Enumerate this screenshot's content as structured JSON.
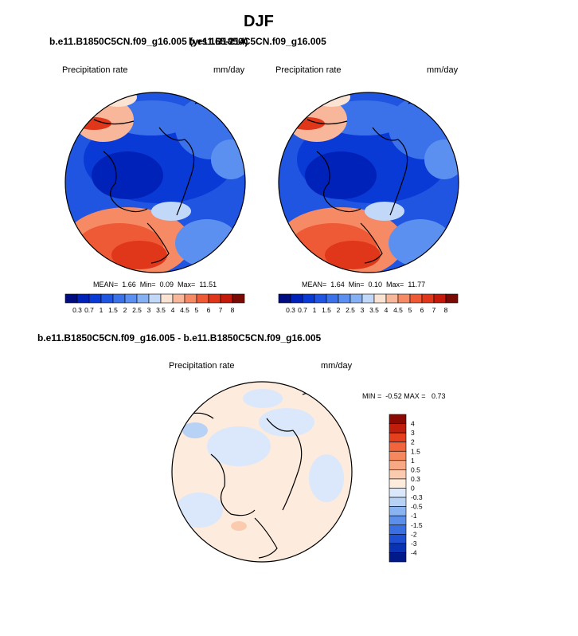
{
  "page_title": "DJF",
  "chart_data": [
    {
      "type": "heatmap",
      "title": "b.e11.B1850C5CN.f09_g16.005 (yrs 165-214)",
      "left_label": "Precipitation rate",
      "units": "mm/day",
      "stats": {
        "text": "MEAN=  1.66  Min=  0.09  Max=  11.51",
        "mean": 1.66,
        "min": 0.09,
        "max": 11.51
      },
      "colorbar": {
        "orientation": "horizontal",
        "ticks": [
          "0.3",
          "0.7",
          "1",
          "1.5",
          "2",
          "2.5",
          "3",
          "3.5",
          "4",
          "4.5",
          "5",
          "6",
          "7",
          "8"
        ],
        "tick_values": [
          0.3,
          0.7,
          1,
          1.5,
          2,
          2.5,
          3,
          3.5,
          4,
          4.5,
          5,
          6,
          7,
          8
        ],
        "colors": [
          "#000d80",
          "#0022b8",
          "#0a3ad6",
          "#1f55e0",
          "#3b72ea",
          "#5c90f0",
          "#86b0f4",
          "#c2d8f8",
          "#fbe3d4",
          "#f8b79a",
          "#f58a64",
          "#ee5a36",
          "#e0361a",
          "#c41a0b",
          "#7a0a04"
        ]
      }
    },
    {
      "type": "heatmap",
      "title": "b.e11.B1850C5CN.f09_g16.005",
      "left_label": "Precipitation rate",
      "units": "mm/day",
      "stats": {
        "text": "MEAN=  1.64  Min=  0.10  Max=  11.77",
        "mean": 1.64,
        "min": 0.1,
        "max": 11.77
      },
      "colorbar": {
        "orientation": "horizontal",
        "ticks": [
          "0.3",
          "0.7",
          "1",
          "1.5",
          "2",
          "2.5",
          "3",
          "3.5",
          "4",
          "4.5",
          "5",
          "6",
          "7",
          "8"
        ],
        "tick_values": [
          0.3,
          0.7,
          1,
          1.5,
          2,
          2.5,
          3,
          3.5,
          4,
          4.5,
          5,
          6,
          7,
          8
        ],
        "colors": [
          "#000d80",
          "#0022b8",
          "#0a3ad6",
          "#1f55e0",
          "#3b72ea",
          "#5c90f0",
          "#86b0f4",
          "#c2d8f8",
          "#fbe3d4",
          "#f8b79a",
          "#f58a64",
          "#ee5a36",
          "#e0361a",
          "#c41a0b",
          "#7a0a04"
        ]
      }
    },
    {
      "type": "heatmap",
      "title": "b.e11.B1850C5CN.f09_g16.005 - b.e11.B1850C5CN.f09_g16.005",
      "left_label": "Precipitation rate",
      "units": "mm/day",
      "stats": {
        "text": "MIN =  -0.52 MAX =   0.73",
        "min": -0.52,
        "max": 0.73
      },
      "colorbar": {
        "orientation": "vertical",
        "ticks": [
          "4",
          "3",
          "2",
          "1.5",
          "1",
          "0.5",
          "0.3",
          "0",
          "-0.3",
          "-0.5",
          "-1",
          "-1.5",
          "-2",
          "-3",
          "-4"
        ],
        "tick_values": [
          4,
          3,
          2,
          1.5,
          1,
          0.5,
          0.3,
          0,
          -0.3,
          -0.5,
          -1,
          -1.5,
          -2,
          -3,
          -4
        ],
        "colors": [
          "#8a0a03",
          "#c01e0c",
          "#e5401d",
          "#f0653b",
          "#f5885c",
          "#f8a983",
          "#fbcbb0",
          "#fdebdd",
          "#dbe8fb",
          "#b8d2f6",
          "#8ab3f2",
          "#5c8fea",
          "#3a6fe2",
          "#1d4fd0",
          "#0a33b4",
          "#001a8a"
        ]
      }
    }
  ]
}
